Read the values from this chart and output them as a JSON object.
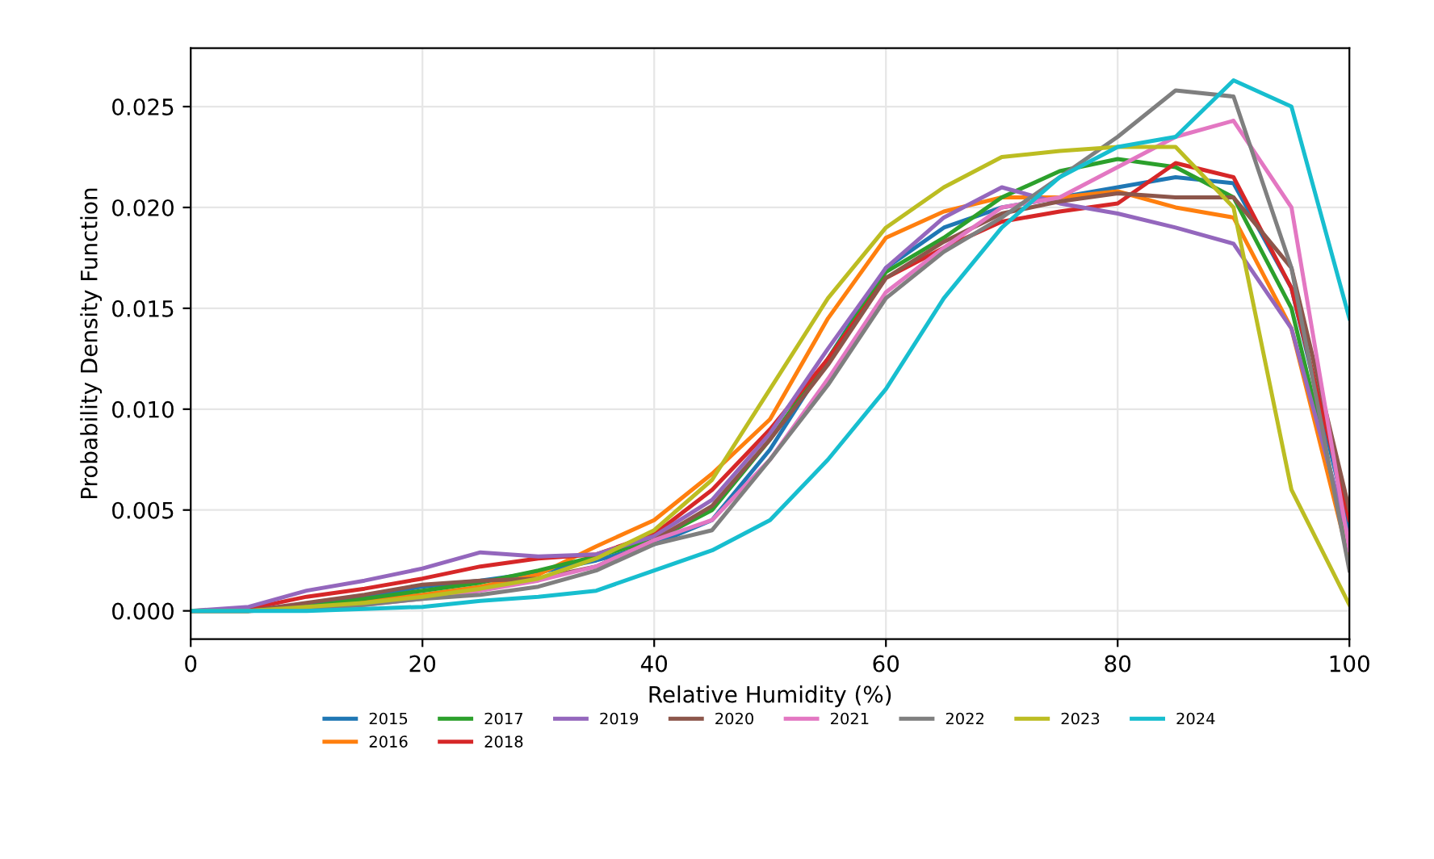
{
  "chart_data": {
    "type": "line",
    "xlabel": "Relative Humidity (%)",
    "ylabel": "Probability Density Function",
    "x": [
      0,
      5,
      10,
      15,
      20,
      25,
      30,
      35,
      40,
      45,
      50,
      55,
      60,
      65,
      70,
      75,
      80,
      85,
      90,
      95,
      100
    ],
    "xlim": [
      0,
      100
    ],
    "xticks": [
      0,
      20,
      40,
      60,
      80,
      100
    ],
    "ylim": [
      -0.0014,
      0.0279
    ],
    "yticks": [
      {
        "value": 0,
        "label": "0.000"
      },
      {
        "value": 0.005,
        "label": "0.005"
      },
      {
        "value": 0.01,
        "label": "0.010"
      },
      {
        "value": 0.015,
        "label": "0.015"
      },
      {
        "value": 0.02,
        "label": "0.020"
      },
      {
        "value": 0.025,
        "label": "0.025"
      }
    ],
    "grid": true,
    "legend": "bottom",
    "marker": "none",
    "line_style": "solid",
    "series": [
      {
        "name": "2015",
        "color": "#1f77b4",
        "values": [
          0,
          0,
          0.0003,
          0.0007,
          0.0012,
          0.0015,
          0.0019,
          0.0025,
          0.0033,
          0.0045,
          0.008,
          0.0125,
          0.017,
          0.019,
          0.02,
          0.0205,
          0.021,
          0.0215,
          0.0212,
          0.016,
          0.004
        ]
      },
      {
        "name": "2016",
        "color": "#ff7f0e",
        "values": [
          null,
          null,
          0.0002,
          0.0005,
          0.0008,
          0.0012,
          0.0018,
          0.0032,
          0.0045,
          0.0068,
          0.0095,
          0.0145,
          0.0185,
          0.0198,
          0.0205,
          0.0205,
          0.0208,
          0.02,
          0.0195,
          0.014,
          0.0025
        ]
      },
      {
        "name": "2017",
        "color": "#2ca02c",
        "values": [
          0,
          0,
          0.0002,
          0.0006,
          0.001,
          0.0014,
          0.002,
          0.0027,
          0.0035,
          0.005,
          0.0085,
          0.0125,
          0.0168,
          0.0185,
          0.0205,
          0.0218,
          0.0224,
          0.022,
          0.0205,
          0.015,
          0.003
        ]
      },
      {
        "name": "2018",
        "color": "#d62728",
        "values": [
          0,
          0.0001,
          0.0007,
          0.0011,
          0.0016,
          0.0022,
          0.0026,
          0.0028,
          0.0038,
          0.006,
          0.009,
          0.0125,
          0.0165,
          0.018,
          0.0193,
          0.0198,
          0.0202,
          0.0222,
          0.0215,
          0.016,
          0.0045
        ]
      },
      {
        "name": "2019",
        "color": "#9467bd",
        "values": [
          0,
          0.0002,
          0.001,
          0.0015,
          0.0021,
          0.0029,
          0.0027,
          0.0028,
          0.0037,
          0.0055,
          0.0088,
          0.013,
          0.017,
          0.0195,
          0.021,
          0.0202,
          0.0197,
          0.019,
          0.0182,
          0.014,
          0.0035
        ]
      },
      {
        "name": "2020",
        "color": "#8c564b",
        "values": [
          0,
          0,
          0.0004,
          0.0008,
          0.0013,
          0.0015,
          0.0016,
          0.0022,
          0.0035,
          0.0052,
          0.0085,
          0.0122,
          0.0165,
          0.0183,
          0.0197,
          0.0203,
          0.0207,
          0.0205,
          0.0205,
          0.017,
          0.005
        ]
      },
      {
        "name": "2021",
        "color": "#e377c2",
        "values": [
          0,
          0,
          0.0001,
          0.0003,
          0.0006,
          0.001,
          0.0015,
          0.0022,
          0.0035,
          0.0045,
          0.0075,
          0.0115,
          0.0158,
          0.018,
          0.02,
          0.0205,
          0.022,
          0.0235,
          0.0243,
          0.02,
          0.003
        ]
      },
      {
        "name": "2022",
        "color": "#7f7f7f",
        "values": [
          0,
          0,
          0.0001,
          0.0003,
          0.0006,
          0.0008,
          0.0012,
          0.002,
          0.0033,
          0.004,
          0.0075,
          0.0112,
          0.0155,
          0.0178,
          0.0195,
          0.0215,
          0.0235,
          0.0258,
          0.0255,
          0.017,
          0.002
        ]
      },
      {
        "name": "2023",
        "color": "#bcbd22",
        "values": [
          0,
          0,
          0.0002,
          0.0004,
          0.0007,
          0.0011,
          0.0016,
          0.0026,
          0.004,
          0.0065,
          0.011,
          0.0155,
          0.019,
          0.021,
          0.0225,
          0.0228,
          0.023,
          0.023,
          0.02,
          0.006,
          0.0003
        ]
      },
      {
        "name": "2024",
        "color": "#17becf",
        "values": [
          0,
          0,
          0,
          0.0001,
          0.0002,
          0.0005,
          0.0007,
          0.001,
          0.002,
          0.003,
          0.0045,
          0.0075,
          0.011,
          0.0155,
          0.019,
          0.0215,
          0.023,
          0.0235,
          0.0263,
          0.025,
          0.0145
        ]
      }
    ]
  }
}
